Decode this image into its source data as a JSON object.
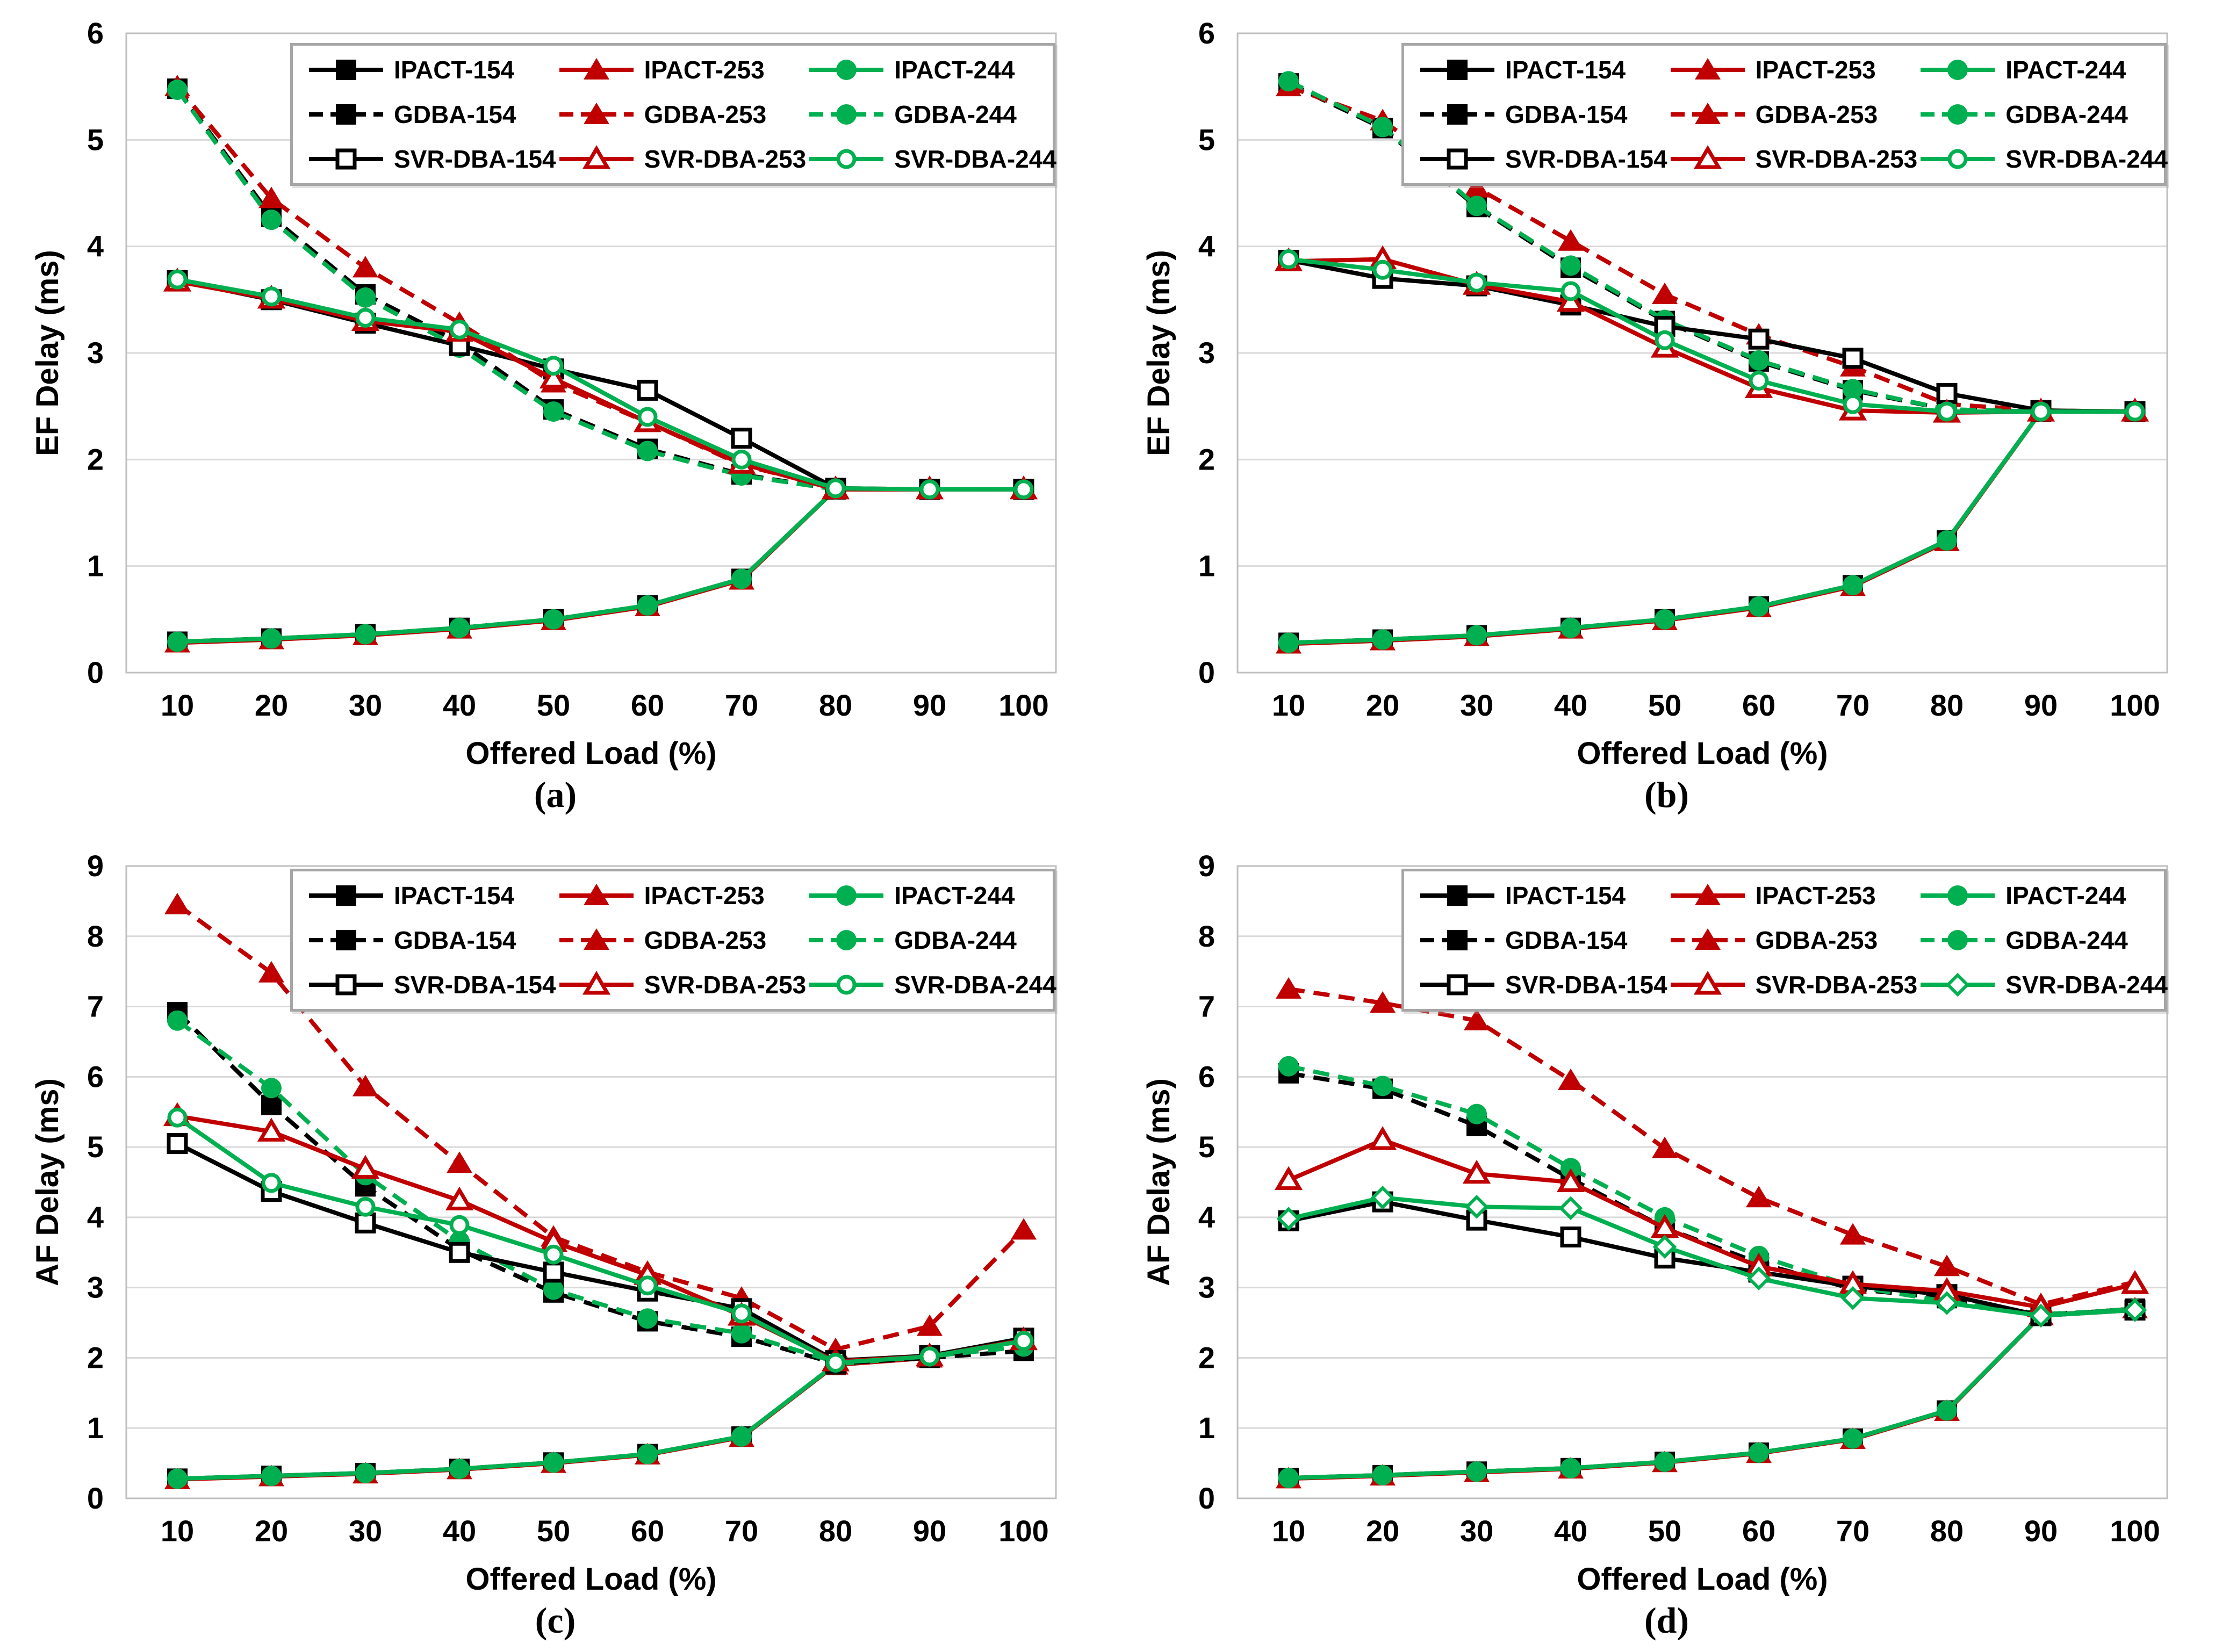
{
  "figure": {
    "colors": {
      "black": "#000000",
      "red": "#c00000",
      "green": "#00b050",
      "grid": "#d9d9d9",
      "plot_border": "#bfbfbf",
      "legend_border": "#a6a6a6"
    },
    "legend_position": "top-inside",
    "legend_rows": [
      [
        "IPACT-154",
        "IPACT-253",
        "IPACT-244"
      ],
      [
        "GDBA-154",
        "GDBA-253",
        "GDBA-244"
      ],
      [
        "SVR-DBA-154",
        "SVR-DBA-253",
        "SVR-DBA-244"
      ]
    ]
  },
  "chart_data": [
    {
      "id": "a",
      "caption": "(a)",
      "type": "line",
      "title": "",
      "xlabel": "Offered Load (%)",
      "ylabel": "EF Delay (ms)",
      "xlim": [
        10,
        100
      ],
      "ylim": [
        0,
        6
      ],
      "grid": true,
      "x": [
        10,
        20,
        30,
        40,
        50,
        60,
        70,
        80,
        90,
        100
      ],
      "yticks": [
        0,
        1,
        2,
        3,
        4,
        5,
        6
      ],
      "series": [
        {
          "name": "IPACT-154",
          "color": "black",
          "dash": false,
          "marker": "square",
          "fill": true,
          "values": [
            0.29,
            0.32,
            0.36,
            0.42,
            0.5,
            0.63,
            0.88,
            1.72,
            1.72,
            1.72
          ]
        },
        {
          "name": "IPACT-253",
          "color": "red",
          "dash": false,
          "marker": "triangle",
          "fill": true,
          "values": [
            0.28,
            0.31,
            0.35,
            0.41,
            0.49,
            0.62,
            0.87,
            1.72,
            1.72,
            1.72
          ]
        },
        {
          "name": "IPACT-244",
          "color": "green",
          "dash": false,
          "marker": "circle",
          "fill": true,
          "values": [
            0.29,
            0.32,
            0.36,
            0.42,
            0.5,
            0.63,
            0.88,
            1.72,
            1.72,
            1.72
          ]
        },
        {
          "name": "GDBA-154",
          "color": "black",
          "dash": true,
          "marker": "square",
          "fill": true,
          "values": [
            5.48,
            4.28,
            3.55,
            3.1,
            2.47,
            2.1,
            1.86,
            1.72,
            1.72,
            1.72
          ]
        },
        {
          "name": "GDBA-253",
          "color": "red",
          "dash": true,
          "marker": "triangle",
          "fill": true,
          "values": [
            5.5,
            4.45,
            3.8,
            3.28,
            2.72,
            2.35,
            1.95,
            1.73,
            1.72,
            1.72
          ]
        },
        {
          "name": "GDBA-244",
          "color": "green",
          "dash": true,
          "marker": "circle",
          "fill": true,
          "values": [
            5.47,
            4.25,
            3.52,
            3.05,
            2.45,
            2.08,
            1.85,
            1.72,
            1.72,
            1.72
          ]
        },
        {
          "name": "SVR-DBA-154",
          "color": "black",
          "dash": false,
          "marker": "square",
          "fill": false,
          "values": [
            3.68,
            3.5,
            3.28,
            3.07,
            2.85,
            2.65,
            2.2,
            1.73,
            1.72,
            1.72
          ]
        },
        {
          "name": "SVR-DBA-253",
          "color": "red",
          "dash": false,
          "marker": "triangle",
          "fill": false,
          "values": [
            3.67,
            3.51,
            3.3,
            3.2,
            2.76,
            2.35,
            1.96,
            1.72,
            1.72,
            1.72
          ]
        },
        {
          "name": "SVR-DBA-244",
          "color": "green",
          "dash": false,
          "marker": "circle",
          "fill": false,
          "values": [
            3.69,
            3.53,
            3.33,
            3.22,
            2.88,
            2.4,
            2.0,
            1.73,
            1.72,
            1.72
          ]
        }
      ]
    },
    {
      "id": "b",
      "caption": "(b)",
      "type": "line",
      "title": "",
      "xlabel": "Offered Load (%)",
      "ylabel": "EF Delay (ms)",
      "xlim": [
        10,
        100
      ],
      "ylim": [
        0,
        6
      ],
      "grid": true,
      "x": [
        10,
        20,
        30,
        40,
        50,
        60,
        70,
        80,
        90,
        100
      ],
      "yticks": [
        0,
        1,
        2,
        3,
        4,
        5,
        6
      ],
      "series": [
        {
          "name": "IPACT-154",
          "color": "black",
          "dash": false,
          "marker": "square",
          "fill": true,
          "values": [
            0.28,
            0.31,
            0.35,
            0.42,
            0.5,
            0.62,
            0.82,
            1.24,
            2.45,
            2.45
          ]
        },
        {
          "name": "IPACT-253",
          "color": "red",
          "dash": false,
          "marker": "triangle",
          "fill": true,
          "values": [
            0.27,
            0.3,
            0.34,
            0.41,
            0.49,
            0.61,
            0.81,
            1.23,
            2.45,
            2.45
          ]
        },
        {
          "name": "IPACT-244",
          "color": "green",
          "dash": false,
          "marker": "circle",
          "fill": true,
          "values": [
            0.28,
            0.31,
            0.35,
            0.42,
            0.5,
            0.62,
            0.82,
            1.24,
            2.45,
            2.45
          ]
        },
        {
          "name": "GDBA-154",
          "color": "black",
          "dash": true,
          "marker": "square",
          "fill": true,
          "values": [
            5.53,
            5.11,
            4.37,
            3.8,
            3.3,
            2.92,
            2.65,
            2.47,
            2.45,
            2.45
          ]
        },
        {
          "name": "GDBA-253",
          "color": "red",
          "dash": true,
          "marker": "triangle",
          "fill": true,
          "values": [
            5.5,
            5.18,
            4.55,
            4.05,
            3.55,
            3.17,
            2.87,
            2.52,
            2.46,
            2.45
          ]
        },
        {
          "name": "GDBA-244",
          "color": "green",
          "dash": true,
          "marker": "circle",
          "fill": true,
          "values": [
            5.55,
            5.12,
            4.38,
            3.82,
            3.31,
            2.93,
            2.66,
            2.47,
            2.45,
            2.45
          ]
        },
        {
          "name": "SVR-DBA-154",
          "color": "black",
          "dash": false,
          "marker": "square",
          "fill": false,
          "values": [
            3.87,
            3.7,
            3.63,
            3.45,
            3.25,
            3.13,
            2.95,
            2.62,
            2.46,
            2.45
          ]
        },
        {
          "name": "SVR-DBA-253",
          "color": "red",
          "dash": false,
          "marker": "triangle",
          "fill": false,
          "values": [
            3.86,
            3.88,
            3.64,
            3.48,
            3.05,
            2.67,
            2.46,
            2.44,
            2.45,
            2.45
          ]
        },
        {
          "name": "SVR-DBA-244",
          "color": "green",
          "dash": false,
          "marker": "circle",
          "fill": false,
          "values": [
            3.88,
            3.78,
            3.66,
            3.58,
            3.12,
            2.74,
            2.52,
            2.45,
            2.45,
            2.45
          ]
        }
      ]
    },
    {
      "id": "c",
      "caption": "(c)",
      "type": "line",
      "title": "",
      "xlabel": "Offered Load (%)",
      "ylabel": "AF Delay (ms)",
      "xlim": [
        10,
        100
      ],
      "ylim": [
        0,
        9
      ],
      "grid": true,
      "x": [
        10,
        20,
        30,
        40,
        50,
        60,
        70,
        80,
        90,
        100
      ],
      "yticks": [
        0,
        1,
        2,
        3,
        4,
        5,
        6,
        7,
        8,
        9
      ],
      "series": [
        {
          "name": "IPACT-154",
          "color": "black",
          "dash": false,
          "marker": "square",
          "fill": true,
          "values": [
            0.28,
            0.32,
            0.36,
            0.42,
            0.51,
            0.63,
            0.88,
            1.9,
            2.01,
            2.26
          ]
        },
        {
          "name": "IPACT-253",
          "color": "red",
          "dash": false,
          "marker": "triangle",
          "fill": true,
          "values": [
            0.27,
            0.31,
            0.35,
            0.41,
            0.5,
            0.62,
            0.87,
            1.9,
            2.0,
            2.25
          ]
        },
        {
          "name": "IPACT-244",
          "color": "green",
          "dash": false,
          "marker": "circle",
          "fill": true,
          "values": [
            0.28,
            0.32,
            0.36,
            0.42,
            0.51,
            0.63,
            0.88,
            1.91,
            2.02,
            2.27
          ]
        },
        {
          "name": "GDBA-154",
          "color": "black",
          "dash": true,
          "marker": "square",
          "fill": true,
          "values": [
            6.92,
            5.6,
            4.44,
            3.54,
            2.93,
            2.52,
            2.3,
            1.92,
            2.0,
            2.1
          ]
        },
        {
          "name": "GDBA-253",
          "color": "red",
          "dash": true,
          "marker": "triangle",
          "fill": true,
          "values": [
            8.45,
            7.48,
            5.86,
            4.77,
            3.72,
            3.22,
            2.85,
            2.12,
            2.45,
            3.82
          ]
        },
        {
          "name": "GDBA-244",
          "color": "green",
          "dash": true,
          "marker": "circle",
          "fill": true,
          "values": [
            6.8,
            5.84,
            4.6,
            3.66,
            2.97,
            2.56,
            2.35,
            1.94,
            2.02,
            2.16
          ]
        },
        {
          "name": "SVR-DBA-154",
          "color": "black",
          "dash": false,
          "marker": "square",
          "fill": false,
          "values": [
            5.05,
            4.37,
            3.92,
            3.5,
            3.22,
            2.95,
            2.7,
            1.96,
            2.03,
            2.28
          ]
        },
        {
          "name": "SVR-DBA-253",
          "color": "red",
          "dash": false,
          "marker": "triangle",
          "fill": false,
          "values": [
            5.44,
            5.22,
            4.69,
            4.24,
            3.65,
            3.18,
            2.6,
            1.95,
            2.02,
            2.25
          ]
        },
        {
          "name": "SVR-DBA-244",
          "color": "green",
          "dash": false,
          "marker": "circle",
          "fill": false,
          "values": [
            5.42,
            4.49,
            4.15,
            3.89,
            3.47,
            3.03,
            2.63,
            1.93,
            2.02,
            2.24
          ]
        }
      ]
    },
    {
      "id": "d",
      "caption": "(d)",
      "type": "line",
      "title": "",
      "xlabel": "Offered Load (%)",
      "ylabel": "AF Delay (ms)",
      "xlim": [
        10,
        100
      ],
      "ylim": [
        0,
        9
      ],
      "grid": true,
      "x": [
        10,
        20,
        30,
        40,
        50,
        60,
        70,
        80,
        90,
        100
      ],
      "yticks": [
        0,
        1,
        2,
        3,
        4,
        5,
        6,
        7,
        8,
        9
      ],
      "series": [
        {
          "name": "IPACT-154",
          "color": "black",
          "dash": false,
          "marker": "square",
          "fill": true,
          "values": [
            0.29,
            0.33,
            0.38,
            0.43,
            0.52,
            0.65,
            0.85,
            1.25,
            2.6,
            2.7
          ]
        },
        {
          "name": "IPACT-253",
          "color": "red",
          "dash": false,
          "marker": "triangle",
          "fill": true,
          "values": [
            0.28,
            0.32,
            0.37,
            0.42,
            0.51,
            0.64,
            0.84,
            1.24,
            2.6,
            2.7
          ]
        },
        {
          "name": "IPACT-244",
          "color": "green",
          "dash": false,
          "marker": "circle",
          "fill": true,
          "values": [
            0.29,
            0.33,
            0.38,
            0.43,
            0.52,
            0.65,
            0.85,
            1.25,
            2.6,
            2.7
          ]
        },
        {
          "name": "GDBA-154",
          "color": "black",
          "dash": true,
          "marker": "square",
          "fill": true,
          "values": [
            6.05,
            5.83,
            5.3,
            4.55,
            3.85,
            3.35,
            2.98,
            2.85,
            2.62,
            2.68
          ]
        },
        {
          "name": "GDBA-253",
          "color": "red",
          "dash": true,
          "marker": "triangle",
          "fill": true,
          "values": [
            7.25,
            7.05,
            6.8,
            5.95,
            4.98,
            4.28,
            3.75,
            3.3,
            2.76,
            3.08
          ]
        },
        {
          "name": "GDBA-244",
          "color": "green",
          "dash": true,
          "marker": "circle",
          "fill": true,
          "values": [
            6.15,
            5.87,
            5.47,
            4.7,
            4.0,
            3.45,
            3.02,
            2.8,
            2.62,
            2.68
          ]
        },
        {
          "name": "SVR-DBA-154",
          "color": "black",
          "dash": false,
          "marker": "square",
          "fill": false,
          "values": [
            3.95,
            4.22,
            3.96,
            3.72,
            3.42,
            3.22,
            3.02,
            2.9,
            2.6,
            2.68
          ]
        },
        {
          "name": "SVR-DBA-253",
          "color": "red",
          "dash": false,
          "marker": "triangle",
          "fill": false,
          "values": [
            4.53,
            5.1,
            4.62,
            4.5,
            3.85,
            3.3,
            3.05,
            2.95,
            2.72,
            3.05
          ]
        },
        {
          "name": "SVR-DBA-244",
          "color": "green",
          "dash": false,
          "marker": "diamond",
          "fill": false,
          "values": [
            3.98,
            4.28,
            4.15,
            4.13,
            3.58,
            3.13,
            2.85,
            2.78,
            2.6,
            2.68
          ]
        }
      ]
    }
  ]
}
